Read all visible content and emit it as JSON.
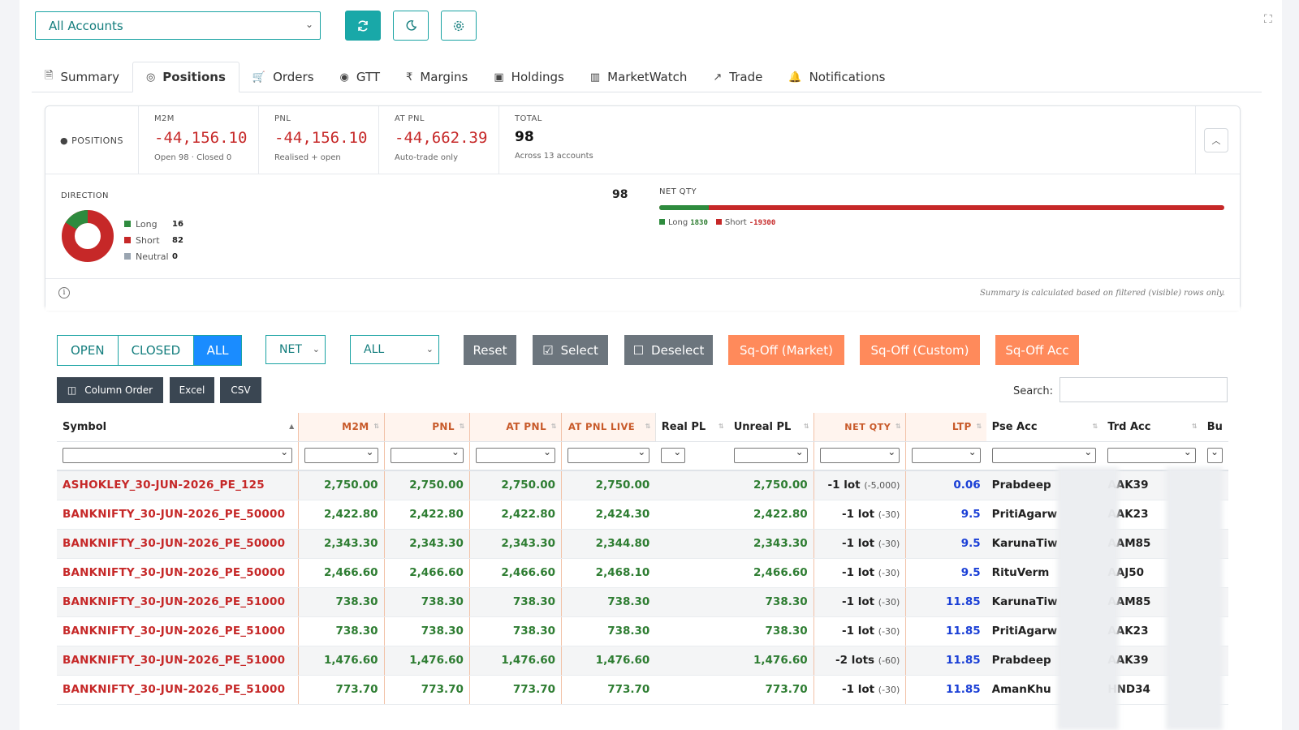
{
  "toolbar": {
    "account_select": "All Accounts",
    "refresh_icon": "refresh-icon",
    "theme_icon": "moon-icon",
    "settings_icon": "gear-icon"
  },
  "tabs": [
    {
      "label": "Summary",
      "icon": "document-icon"
    },
    {
      "label": "Positions",
      "icon": "compass-icon",
      "active": true
    },
    {
      "label": "Orders",
      "icon": "cart-icon"
    },
    {
      "label": "GTT",
      "icon": "target-icon"
    },
    {
      "label": "Margins",
      "icon": "rupee-icon"
    },
    {
      "label": "Holdings",
      "icon": "briefcase-icon"
    },
    {
      "label": "MarketWatch",
      "icon": "bar-chart-icon"
    },
    {
      "label": "Trade",
      "icon": "trend-up-icon"
    },
    {
      "label": "Notifications",
      "icon": "bell-icon"
    }
  ],
  "summary": {
    "label": "POSITIONS",
    "m2m": {
      "title": "M2M",
      "value": "-44,156.10",
      "sub": "Open 98 · Closed 0"
    },
    "pnl": {
      "title": "PNL",
      "value": "-44,156.10",
      "sub": "Realised + open"
    },
    "at_pnl": {
      "title": "AT PNL",
      "value": "-44,662.39",
      "sub": "Auto-trade only"
    },
    "total": {
      "title": "TOTAL",
      "value": "98",
      "sub": "Across 13 accounts"
    },
    "direction": {
      "title": "DIRECTION",
      "total": "98",
      "long": {
        "label": "Long",
        "count": "16"
      },
      "short": {
        "label": "Short",
        "count": "82"
      },
      "neutral": {
        "label": "Neutral",
        "count": "0"
      }
    },
    "net_qty": {
      "title": "NET QTY",
      "long_label": "Long",
      "long_value": "1830",
      "long_fraction": 0.087,
      "short_label": "Short",
      "short_value": "-19300"
    },
    "footnote": "Summary is calculated based on filtered (visible) rows only."
  },
  "colors": {
    "accent": "#1aa3a3",
    "negative": "#c62828",
    "positive": "#2e7d32",
    "orange": "#ff8a5b",
    "long": "#2e8b3e",
    "short": "#c62828",
    "neutral": "#9aa5b1"
  },
  "controls": {
    "status": [
      "OPEN",
      "CLOSED",
      "ALL"
    ],
    "net_select": "NET",
    "all_select": "ALL",
    "reset": "Reset",
    "select": "Select",
    "deselect": "Deselect",
    "sqoff_market": "Sq-Off (Market)",
    "sqoff_custom": "Sq-Off (Custom)",
    "sqoff_acc": "Sq-Off Acc",
    "column_order": "Column Order",
    "excel": "Excel",
    "csv": "CSV",
    "search_label": "Search:"
  },
  "table": {
    "headers": [
      "Symbol",
      "M2M",
      "PNL",
      "AT PNL",
      "AT PNL LIVE",
      "Real PL",
      "Unreal PL",
      "NET QTY",
      "LTP",
      "Pse Acc",
      "Trd Acc",
      "Bu"
    ],
    "rows": [
      {
        "symbol": "ASHOKLEY_30-JUN-2026_PE_125",
        "m2m": "2,750.00",
        "pnl": "2,750.00",
        "at_pnl": "2,750.00",
        "at_pnl_live": "2,750.00",
        "real_pl": "",
        "unreal_pl": "2,750.00",
        "qty": "-1 lot",
        "qty_sub": "(-5,000)",
        "ltp": "0.06",
        "pse_acc": "Prabdeep",
        "trd_acc": "AAK39"
      },
      {
        "symbol": "BANKNIFTY_30-JUN-2026_PE_50000",
        "m2m": "2,422.80",
        "pnl": "2,422.80",
        "at_pnl": "2,422.80",
        "at_pnl_live": "2,424.30",
        "real_pl": "",
        "unreal_pl": "2,422.80",
        "qty": "-1 lot",
        "qty_sub": "(-30)",
        "ltp": "9.5",
        "pse_acc": "PritiAgarw",
        "trd_acc": "AAK23"
      },
      {
        "symbol": "BANKNIFTY_30-JUN-2026_PE_50000",
        "m2m": "2,343.30",
        "pnl": "2,343.30",
        "at_pnl": "2,343.30",
        "at_pnl_live": "2,344.80",
        "real_pl": "",
        "unreal_pl": "2,343.30",
        "qty": "-1 lot",
        "qty_sub": "(-30)",
        "ltp": "9.5",
        "pse_acc": "KarunaTiw",
        "trd_acc": "AAM85"
      },
      {
        "symbol": "BANKNIFTY_30-JUN-2026_PE_50000",
        "m2m": "2,466.60",
        "pnl": "2,466.60",
        "at_pnl": "2,466.60",
        "at_pnl_live": "2,468.10",
        "real_pl": "",
        "unreal_pl": "2,466.60",
        "qty": "-1 lot",
        "qty_sub": "(-30)",
        "ltp": "9.5",
        "pse_acc": "RituVerm",
        "trd_acc": "AAJ50"
      },
      {
        "symbol": "BANKNIFTY_30-JUN-2026_PE_51000",
        "m2m": "738.30",
        "pnl": "738.30",
        "at_pnl": "738.30",
        "at_pnl_live": "738.30",
        "real_pl": "",
        "unreal_pl": "738.30",
        "qty": "-1 lot",
        "qty_sub": "(-30)",
        "ltp": "11.85",
        "pse_acc": "KarunaTiw",
        "trd_acc": "AAM85"
      },
      {
        "symbol": "BANKNIFTY_30-JUN-2026_PE_51000",
        "m2m": "738.30",
        "pnl": "738.30",
        "at_pnl": "738.30",
        "at_pnl_live": "738.30",
        "real_pl": "",
        "unreal_pl": "738.30",
        "qty": "-1 lot",
        "qty_sub": "(-30)",
        "ltp": "11.85",
        "pse_acc": "PritiAgarw",
        "trd_acc": "AAK23"
      },
      {
        "symbol": "BANKNIFTY_30-JUN-2026_PE_51000",
        "m2m": "1,476.60",
        "pnl": "1,476.60",
        "at_pnl": "1,476.60",
        "at_pnl_live": "1,476.60",
        "real_pl": "",
        "unreal_pl": "1,476.60",
        "qty": "-2 lots",
        "qty_sub": "(-60)",
        "ltp": "11.85",
        "pse_acc": "Prabdeep",
        "trd_acc": "AAK39"
      },
      {
        "symbol": "BANKNIFTY_30-JUN-2026_PE_51000",
        "m2m": "773.70",
        "pnl": "773.70",
        "at_pnl": "773.70",
        "at_pnl_live": "773.70",
        "real_pl": "",
        "unreal_pl": "773.70",
        "qty": "-1 lot",
        "qty_sub": "(-30)",
        "ltp": "11.85",
        "pse_acc": "AmanKhu",
        "trd_acc": "HND34"
      }
    ]
  }
}
